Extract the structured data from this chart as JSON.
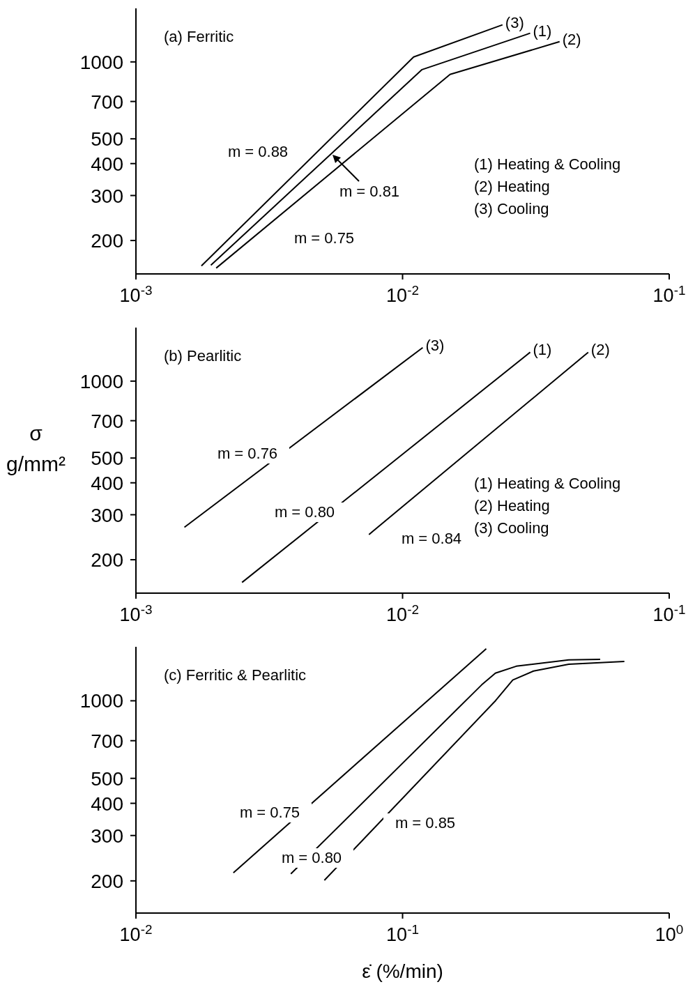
{
  "chart_data": [
    {
      "type": "line",
      "title": "(a) Ferritic",
      "log": "xy",
      "xlim": [
        0.001,
        0.1
      ],
      "ylim": [
        148,
        1620
      ],
      "xticks": [
        {
          "value": 0.001,
          "label": "10$^{-3}$"
        },
        {
          "value": 0.01,
          "label": "10$^{-2}$"
        },
        {
          "value": 0.1,
          "label": "10$^{-1}$"
        }
      ],
      "yticks": [
        200,
        300,
        400,
        500,
        700,
        1000
      ],
      "series": [
        {
          "name": "(3)",
          "color": "#000000",
          "x": [
            0.00176,
            0.011,
            0.0237
          ],
          "values": [
            159,
            1045,
            1397
          ]
        },
        {
          "name": "(1)",
          "color": "#000000",
          "x": [
            0.00191,
            0.01183,
            0.0301
          ],
          "values": [
            160,
            933,
            1295
          ]
        },
        {
          "name": "(2)",
          "color": "#000000",
          "x": [
            0.002,
            0.01507,
            0.0388
          ],
          "values": [
            156,
            893,
            1200
          ]
        }
      ],
      "annotations": [
        "m = 0.88",
        "m = 0.81",
        "m = 0.75",
        "(1) Heating & Cooling",
        "(2) Heating",
        "(3) Cooling"
      ]
    },
    {
      "type": "line",
      "title": "(b) Pearlitic",
      "ylabel": "σ g/mm²",
      "log": "xy",
      "xlim": [
        0.001,
        0.1
      ],
      "ylim": [
        148,
        1620
      ],
      "xticks": [
        {
          "value": 0.001,
          "label": "10$^{-3}$"
        },
        {
          "value": 0.01,
          "label": "10$^{-2}$"
        },
        {
          "value": 0.1,
          "label": "10$^{-1}$"
        }
      ],
      "yticks": [
        200,
        300,
        400,
        500,
        700,
        1000
      ],
      "series": [
        {
          "name": "(3)",
          "color": "#000000",
          "x": [
            0.00152,
            0.0119
          ],
          "values": [
            268,
            1353
          ]
        },
        {
          "name": "(1)",
          "color": "#000000",
          "x": [
            0.0025,
            0.0301
          ],
          "values": [
            163,
            1297
          ]
        },
        {
          "name": "(2)",
          "color": "#000000",
          "x": [
            0.00748,
            0.0497
          ],
          "values": [
            251,
            1297
          ]
        }
      ],
      "annotations": [
        "m = 0.76",
        "m = 0.80",
        "m = 0.84",
        "(1) Heating & Cooling",
        "(2) Heating",
        "(3) Cooling"
      ]
    },
    {
      "type": "line",
      "title": "(c) Ferritic & Pearlitic",
      "xlabel": "ε̇ (%/min)",
      "log": "xy",
      "xlim": [
        0.01,
        1
      ],
      "ylim": [
        150,
        1620
      ],
      "xticks": [
        {
          "value": 0.01,
          "label": "10$^{-2}$"
        },
        {
          "value": 0.1,
          "label": "10$^{-1}$"
        },
        {
          "value": 1,
          "label": "10$^{0}$"
        }
      ],
      "yticks": [
        200,
        300,
        400,
        500,
        700,
        1000
      ],
      "series": [
        {
          "color": "#000000",
          "x": [
            0.0232,
            0.206
          ],
          "values": [
            215,
            1593
          ]
        },
        {
          "color": "#000000",
          "x": [
            0.0381,
            0.198,
            0.223,
            0.267,
            0.42,
            0.551
          ],
          "values": [
            213,
            1153,
            1281,
            1362,
            1442,
            1449
          ]
        },
        {
          "color": "#000000",
          "x": [
            0.0509,
            0.223,
            0.259,
            0.31,
            0.42,
            0.679
          ],
          "values": [
            201,
            1000,
            1204,
            1305,
            1387,
            1422
          ]
        }
      ],
      "annotations": [
        "m = 0.75",
        "m = 0.80",
        "m = 0.85"
      ]
    }
  ]
}
